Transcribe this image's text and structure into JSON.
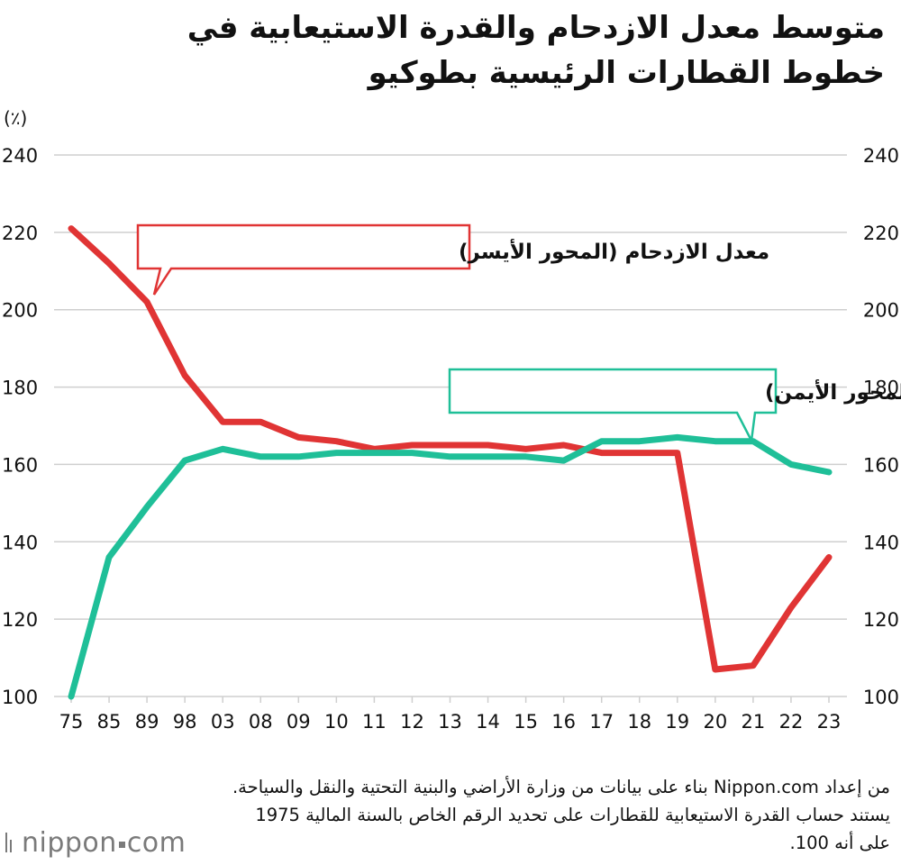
{
  "title": "متوسط معدل الازدحام والقدرة الاستيعابية في خطوط القطارات الرئيسية بطوكيو",
  "chart_data": {
    "type": "line",
    "title": "متوسط معدل الازدحام والقدرة الاستيعابية في خطوط القطارات الرئيسية بطوكيو",
    "unit_label": "(٪)",
    "categories": [
      "75",
      "85",
      "89",
      "98",
      "03",
      "08",
      "09",
      "10",
      "11",
      "12",
      "13",
      "14",
      "15",
      "16",
      "17",
      "18",
      "19",
      "20",
      "21",
      "22",
      "23"
    ],
    "ylim": [
      100,
      240
    ],
    "yticks": [
      100,
      120,
      140,
      160,
      180,
      200,
      220,
      240
    ],
    "grid": true,
    "series": [
      {
        "name": "معدل الازدحام (المحور الأيسر)",
        "axis": "left",
        "color": "#e03434",
        "values": [
          221,
          212,
          202,
          183,
          171,
          171,
          167,
          166,
          164,
          165,
          165,
          165,
          164,
          165,
          163,
          163,
          163,
          107,
          108,
          123,
          136
        ]
      },
      {
        "name": "سعة القطارات (المحور الأيمن)",
        "axis": "right",
        "color": "#1fbf98",
        "values": [
          100,
          136,
          149,
          161,
          164,
          162,
          162,
          163,
          163,
          163,
          162,
          162,
          162,
          161,
          166,
          166,
          167,
          166,
          166,
          160,
          158
        ]
      }
    ]
  },
  "footnote": "من إعداد Nippon.com بناء على بيانات من وزارة الأراضي والبنية التحتية والنقل والسياحة. يستند حساب القدرة الاستيعابية للقطارات على تحديد الرقم الخاص بالسنة المالية 1975 على أنه 100.",
  "logo": {
    "main": "nippon",
    "suffix": "com"
  }
}
